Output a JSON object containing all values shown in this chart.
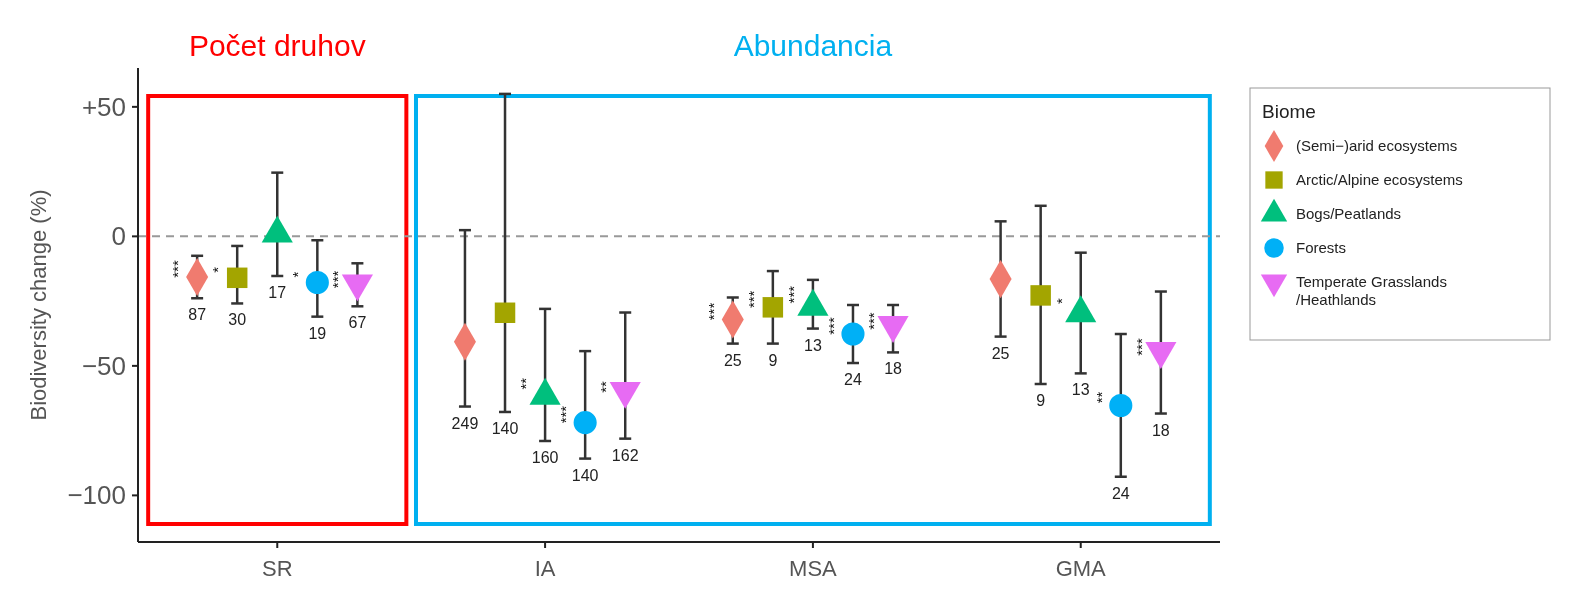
{
  "chart_data": {
    "type": "scatter",
    "ylabel": "Biodiversity change (%)",
    "legend_title": "Biome",
    "legend": "right",
    "grid": false,
    "categories": [
      "SR",
      "IA",
      "MSA",
      "GMA"
    ],
    "ylim": [
      -118,
      65
    ],
    "yticks": [
      {
        "value": 50,
        "label": "+50"
      },
      0,
      {
        "value": -50,
        "label": "−50"
      },
      {
        "value": -100,
        "label": "−100"
      }
    ],
    "ref_lines": [
      {
        "axis": "y",
        "value": 0,
        "color": "#999999",
        "line_style": "dashed"
      }
    ],
    "series": [
      {
        "name": "(Semi−)arid ecosystems",
        "color": "#f07b6f",
        "marker": "diamond",
        "values": [
          -15.7,
          -40.7,
          -32.1,
          -16.5
        ],
        "errors": [
          [
            -23.9,
            -7.5
          ],
          [
            -65.7,
            2.4
          ],
          [
            -41.4,
            -23.6
          ],
          [
            -38.7,
            5.8
          ]
        ]
      },
      {
        "name": "Arctic/Alpine ecosystems",
        "color": "#a3a500",
        "marker": "square",
        "values": [
          -16,
          -29.5,
          -27.4,
          -22.8
        ],
        "errors": [
          [
            -25.9,
            -3.7
          ],
          [
            -67.8,
            55
          ],
          [
            -41.4,
            -13.4
          ],
          [
            -57,
            11.8
          ]
        ]
      },
      {
        "name": "Bogs/Peatlands",
        "color": "#00bf7d",
        "marker": "triangle",
        "values": [
          2.6,
          -60,
          -25.6,
          -28.1
        ],
        "errors": [
          [
            -15.3,
            24.6
          ],
          [
            -79,
            -28
          ],
          [
            -35.6,
            -16.8
          ],
          [
            -52.9,
            -6.3
          ]
        ]
      },
      {
        "name": "Forests",
        "color": "#00b0f6",
        "marker": "circle",
        "values": [
          -17.8,
          -71.9,
          -37.7,
          -65.3
        ],
        "errors": [
          [
            -31,
            -1.5
          ],
          [
            -85.8,
            -44.3
          ],
          [
            -48.9,
            -26.5
          ],
          [
            -92.8,
            -37.7
          ]
        ]
      },
      {
        "name": "Temperate Grasslands /Heathlands",
        "color": "#e76bf3",
        "marker": "triangle-down",
        "values": [
          -19.7,
          -61.2,
          -35.8,
          -45.8
        ],
        "errors": [
          [
            -27,
            -10.4
          ],
          [
            -78.1,
            -29.4
          ],
          [
            -44.8,
            -26.5
          ],
          [
            -68.4,
            -21.3
          ]
        ]
      }
    ],
    "annotations": [
      "Počet druhov",
      "Abundancia",
      "***",
      "*",
      "*",
      "***",
      "87",
      "30",
      "17",
      "19",
      "67",
      "**",
      "***",
      "**",
      "249",
      "140",
      "160",
      "140",
      "162",
      "***",
      "***",
      "***",
      "***",
      "***",
      "25",
      "9",
      "13",
      "24",
      "18",
      "*",
      "**",
      "***",
      "25",
      "9",
      "13",
      "24",
      "18"
    ]
  }
}
